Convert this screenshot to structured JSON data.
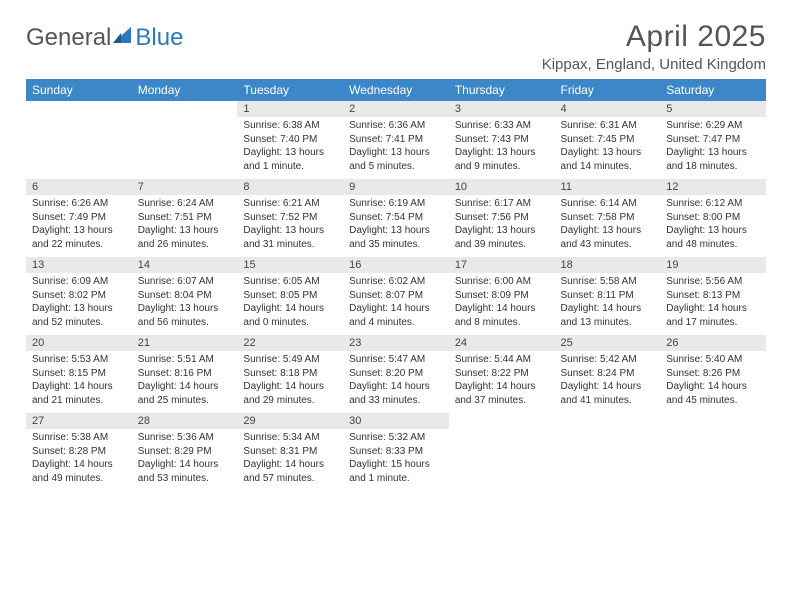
{
  "brand": {
    "part1": "General",
    "part2": "Blue"
  },
  "title": "April 2025",
  "location": "Kippax, England, United Kingdom",
  "colors": {
    "header_bg": "#3b87c8",
    "header_text": "#ffffff",
    "daynum_bg": "#e9e9e9",
    "rule": "#2b6aa0",
    "title_color": "#555555",
    "logo_gray": "#565656",
    "logo_blue": "#2d78bb"
  },
  "day_headers": [
    "Sunday",
    "Monday",
    "Tuesday",
    "Wednesday",
    "Thursday",
    "Friday",
    "Saturday"
  ],
  "weeks": [
    [
      null,
      null,
      {
        "n": "1",
        "sr": "6:38 AM",
        "ss": "7:40 PM",
        "dl": "13 hours and 1 minute."
      },
      {
        "n": "2",
        "sr": "6:36 AM",
        "ss": "7:41 PM",
        "dl": "13 hours and 5 minutes."
      },
      {
        "n": "3",
        "sr": "6:33 AM",
        "ss": "7:43 PM",
        "dl": "13 hours and 9 minutes."
      },
      {
        "n": "4",
        "sr": "6:31 AM",
        "ss": "7:45 PM",
        "dl": "13 hours and 14 minutes."
      },
      {
        "n": "5",
        "sr": "6:29 AM",
        "ss": "7:47 PM",
        "dl": "13 hours and 18 minutes."
      }
    ],
    [
      {
        "n": "6",
        "sr": "6:26 AM",
        "ss": "7:49 PM",
        "dl": "13 hours and 22 minutes."
      },
      {
        "n": "7",
        "sr": "6:24 AM",
        "ss": "7:51 PM",
        "dl": "13 hours and 26 minutes."
      },
      {
        "n": "8",
        "sr": "6:21 AM",
        "ss": "7:52 PM",
        "dl": "13 hours and 31 minutes."
      },
      {
        "n": "9",
        "sr": "6:19 AM",
        "ss": "7:54 PM",
        "dl": "13 hours and 35 minutes."
      },
      {
        "n": "10",
        "sr": "6:17 AM",
        "ss": "7:56 PM",
        "dl": "13 hours and 39 minutes."
      },
      {
        "n": "11",
        "sr": "6:14 AM",
        "ss": "7:58 PM",
        "dl": "13 hours and 43 minutes."
      },
      {
        "n": "12",
        "sr": "6:12 AM",
        "ss": "8:00 PM",
        "dl": "13 hours and 48 minutes."
      }
    ],
    [
      {
        "n": "13",
        "sr": "6:09 AM",
        "ss": "8:02 PM",
        "dl": "13 hours and 52 minutes."
      },
      {
        "n": "14",
        "sr": "6:07 AM",
        "ss": "8:04 PM",
        "dl": "13 hours and 56 minutes."
      },
      {
        "n": "15",
        "sr": "6:05 AM",
        "ss": "8:05 PM",
        "dl": "14 hours and 0 minutes."
      },
      {
        "n": "16",
        "sr": "6:02 AM",
        "ss": "8:07 PM",
        "dl": "14 hours and 4 minutes."
      },
      {
        "n": "17",
        "sr": "6:00 AM",
        "ss": "8:09 PM",
        "dl": "14 hours and 8 minutes."
      },
      {
        "n": "18",
        "sr": "5:58 AM",
        "ss": "8:11 PM",
        "dl": "14 hours and 13 minutes."
      },
      {
        "n": "19",
        "sr": "5:56 AM",
        "ss": "8:13 PM",
        "dl": "14 hours and 17 minutes."
      }
    ],
    [
      {
        "n": "20",
        "sr": "5:53 AM",
        "ss": "8:15 PM",
        "dl": "14 hours and 21 minutes."
      },
      {
        "n": "21",
        "sr": "5:51 AM",
        "ss": "8:16 PM",
        "dl": "14 hours and 25 minutes."
      },
      {
        "n": "22",
        "sr": "5:49 AM",
        "ss": "8:18 PM",
        "dl": "14 hours and 29 minutes."
      },
      {
        "n": "23",
        "sr": "5:47 AM",
        "ss": "8:20 PM",
        "dl": "14 hours and 33 minutes."
      },
      {
        "n": "24",
        "sr": "5:44 AM",
        "ss": "8:22 PM",
        "dl": "14 hours and 37 minutes."
      },
      {
        "n": "25",
        "sr": "5:42 AM",
        "ss": "8:24 PM",
        "dl": "14 hours and 41 minutes."
      },
      {
        "n": "26",
        "sr": "5:40 AM",
        "ss": "8:26 PM",
        "dl": "14 hours and 45 minutes."
      }
    ],
    [
      {
        "n": "27",
        "sr": "5:38 AM",
        "ss": "8:28 PM",
        "dl": "14 hours and 49 minutes."
      },
      {
        "n": "28",
        "sr": "5:36 AM",
        "ss": "8:29 PM",
        "dl": "14 hours and 53 minutes."
      },
      {
        "n": "29",
        "sr": "5:34 AM",
        "ss": "8:31 PM",
        "dl": "14 hours and 57 minutes."
      },
      {
        "n": "30",
        "sr": "5:32 AM",
        "ss": "8:33 PM",
        "dl": "15 hours and 1 minute."
      },
      null,
      null,
      null
    ]
  ],
  "labels": {
    "sunrise": "Sunrise: ",
    "sunset": "Sunset: ",
    "daylight": "Daylight: "
  }
}
